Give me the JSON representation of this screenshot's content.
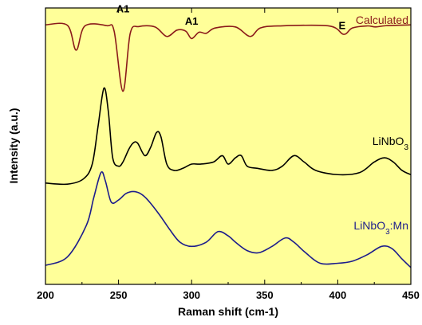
{
  "chart_data": {
    "type": "line",
    "xlabel": "Raman shift (cm-1)",
    "ylabel": "Intensity (a.u.)",
    "xlim": [
      200,
      450
    ],
    "xticks": [
      "200",
      "250",
      "300",
      "350",
      "400",
      "450"
    ],
    "y_tick_labels": "none",
    "grid": "off",
    "background_color": "#FFFF99",
    "series": [
      {
        "name": "Calculated",
        "color": "#8B1A1A",
        "points": [
          [
            200,
            0
          ],
          [
            215,
            0.2
          ],
          [
            221,
            12
          ],
          [
            227,
            0.5
          ],
          [
            242,
            0.4
          ],
          [
            247,
            3
          ],
          [
            253,
            31.5
          ],
          [
            258,
            4
          ],
          [
            264,
            0.8
          ],
          [
            275,
            1
          ],
          [
            283,
            5.5
          ],
          [
            290,
            2.5
          ],
          [
            296,
            3
          ],
          [
            300,
            6.5
          ],
          [
            305,
            3.5
          ],
          [
            310,
            4
          ],
          [
            316,
            1.5
          ],
          [
            330,
            1
          ],
          [
            340,
            5.5
          ],
          [
            347,
            1.5
          ],
          [
            360,
            0.5
          ],
          [
            394,
            0.5
          ],
          [
            404,
            4.5
          ],
          [
            410,
            1.5
          ],
          [
            420,
            0.5
          ],
          [
            426,
            1
          ],
          [
            433,
            0.4
          ],
          [
            450,
            0
          ]
        ]
      },
      {
        "name": "LiNbO3",
        "color": "#000000",
        "points": [
          [
            200,
            75
          ],
          [
            215,
            75.5
          ],
          [
            226,
            73
          ],
          [
            232,
            66
          ],
          [
            236,
            48
          ],
          [
            240,
            30
          ],
          [
            243,
            41
          ],
          [
            246,
            63
          ],
          [
            250,
            67
          ],
          [
            253,
            65
          ],
          [
            257,
            59
          ],
          [
            260,
            56
          ],
          [
            263,
            56
          ],
          [
            268,
            62
          ],
          [
            272,
            58
          ],
          [
            276,
            51
          ],
          [
            279,
            53
          ],
          [
            283,
            66
          ],
          [
            288,
            69
          ],
          [
            294,
            68
          ],
          [
            300,
            66
          ],
          [
            306,
            66
          ],
          [
            315,
            65
          ],
          [
            321,
            62
          ],
          [
            325,
            66
          ],
          [
            330,
            63
          ],
          [
            334,
            62
          ],
          [
            338,
            67
          ],
          [
            345,
            68
          ],
          [
            355,
            69
          ],
          [
            362,
            67
          ],
          [
            370,
            62
          ],
          [
            377,
            65
          ],
          [
            385,
            69
          ],
          [
            400,
            71
          ],
          [
            415,
            70
          ],
          [
            425,
            65
          ],
          [
            432,
            63
          ],
          [
            438,
            65
          ],
          [
            444,
            69
          ],
          [
            450,
            71
          ]
        ]
      },
      {
        "name": "LiNbO3:Mn",
        "color": "#1C1C8C",
        "points": [
          [
            200,
            114
          ],
          [
            215,
            110
          ],
          [
            228,
            95
          ],
          [
            233,
            82
          ],
          [
            238,
            70
          ],
          [
            241,
            74
          ],
          [
            245,
            84
          ],
          [
            250,
            83
          ],
          [
            255,
            80
          ],
          [
            260,
            79
          ],
          [
            265,
            80
          ],
          [
            270,
            83
          ],
          [
            278,
            90
          ],
          [
            285,
            97
          ],
          [
            292,
            103
          ],
          [
            300,
            105
          ],
          [
            310,
            103
          ],
          [
            318,
            98
          ],
          [
            325,
            100
          ],
          [
            330,
            103
          ],
          [
            338,
            107
          ],
          [
            346,
            108
          ],
          [
            355,
            105
          ],
          [
            364,
            101
          ],
          [
            370,
            103
          ],
          [
            378,
            108
          ],
          [
            388,
            113
          ],
          [
            400,
            113
          ],
          [
            410,
            112
          ],
          [
            420,
            109
          ],
          [
            430,
            105
          ],
          [
            437,
            106
          ],
          [
            444,
            111
          ],
          [
            450,
            115
          ]
        ]
      }
    ],
    "annotations": [
      {
        "text": "A1",
        "x": 253,
        "y": -6
      },
      {
        "text": "A1",
        "x": 300,
        "y": 0
      },
      {
        "text": "E",
        "x": 403,
        "y": 2
      }
    ],
    "series_labels": [
      {
        "text": "Calculated",
        "color": "#8B1A1A"
      },
      {
        "text": "LiNbO",
        "sub": "3",
        "color": "#000000"
      },
      {
        "text": "LiNbO",
        "sub": "3",
        "suffix": ":Mn",
        "color": "#1C1C8C"
      }
    ]
  }
}
